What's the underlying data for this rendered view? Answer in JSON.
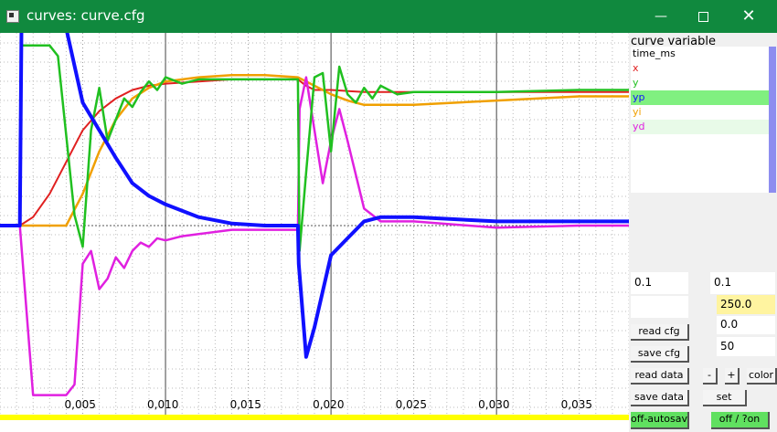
{
  "window": {
    "title": "curves: curve.cfg"
  },
  "panel": {
    "header": "curve variable",
    "variables": [
      {
        "label": "time_ms",
        "color": "#000000"
      },
      {
        "label": "x",
        "color": "#e02020"
      },
      {
        "label": "y",
        "color": "#20c020"
      },
      {
        "label": "yp",
        "color": "#1010ff"
      },
      {
        "label": "yi",
        "color": "#f0a000"
      },
      {
        "label": "yd",
        "color": "#e020e0"
      }
    ],
    "selected": "yp",
    "fields": {
      "left_top": "0.1",
      "right_top": "0.1",
      "left_empty": "",
      "right_yellow": "250.0",
      "right_3": "0.0",
      "right_4": "50"
    },
    "buttons": {
      "read_cfg": "read cfg",
      "save_cfg": "save cfg",
      "read_data": "read data",
      "save_data": "save data",
      "minus": "-",
      "plus": "+",
      "color": "color",
      "set": "set",
      "autosave": "off-autosave",
      "off_on": "off / ?on"
    }
  },
  "chart_data": {
    "type": "line",
    "xlabel": "",
    "ylabel": "",
    "xlim": [
      0.0,
      0.038
    ],
    "ylim": [
      -1.0,
      1.0
    ],
    "x_ticks": [
      "0,005",
      "0,010",
      "0,015",
      "0,020",
      "0,025",
      "0,030",
      "0,035"
    ],
    "grid": true,
    "series": [
      {
        "name": "x",
        "color": "#e02020",
        "x": [
          0.0,
          0.0012,
          0.002,
          0.003,
          0.004,
          0.005,
          0.006,
          0.007,
          0.008,
          0.009,
          0.01,
          0.012,
          0.014,
          0.016,
          0.018,
          0.0185,
          0.019,
          0.02,
          0.022,
          0.025,
          0.03,
          0.035,
          0.038
        ],
        "y": [
          0.0,
          0.0,
          0.04,
          0.15,
          0.3,
          0.45,
          0.54,
          0.6,
          0.64,
          0.66,
          0.67,
          0.68,
          0.69,
          0.69,
          0.69,
          0.66,
          0.64,
          0.64,
          0.63,
          0.63,
          0.63,
          0.63,
          0.63
        ]
      },
      {
        "name": "y",
        "color": "#20c020",
        "x": [
          0.0,
          0.0012,
          0.0013,
          0.003,
          0.0035,
          0.0045,
          0.005,
          0.0055,
          0.006,
          0.0065,
          0.007,
          0.0075,
          0.008,
          0.0085,
          0.009,
          0.0095,
          0.01,
          0.011,
          0.012,
          0.014,
          0.018,
          0.0181,
          0.0185,
          0.019,
          0.0195,
          0.02,
          0.0205,
          0.021,
          0.0215,
          0.022,
          0.0225,
          0.023,
          0.024,
          0.025,
          0.03,
          0.035,
          0.038
        ],
        "y": [
          0.0,
          0.0,
          0.85,
          0.85,
          0.8,
          0.05,
          -0.1,
          0.45,
          0.65,
          0.4,
          0.5,
          0.6,
          0.56,
          0.63,
          0.68,
          0.64,
          0.7,
          0.67,
          0.69,
          0.69,
          0.69,
          -0.12,
          0.25,
          0.7,
          0.72,
          0.35,
          0.75,
          0.62,
          0.58,
          0.65,
          0.6,
          0.66,
          0.62,
          0.63,
          0.63,
          0.64,
          0.64
        ]
      },
      {
        "name": "yp",
        "color": "#1010ff",
        "x": [
          0.0,
          0.0012,
          0.0013,
          0.003,
          0.004,
          0.005,
          0.006,
          0.007,
          0.008,
          0.009,
          0.01,
          0.012,
          0.014,
          0.016,
          0.018,
          0.01805,
          0.0185,
          0.019,
          0.02,
          0.021,
          0.022,
          0.023,
          0.024,
          0.025,
          0.03,
          0.035,
          0.038
        ],
        "y": [
          0.0,
          0.0,
          1.0,
          1.0,
          1.0,
          0.58,
          0.45,
          0.32,
          0.2,
          0.14,
          0.1,
          0.04,
          0.01,
          0.0,
          0.0,
          -0.18,
          -0.62,
          -0.48,
          -0.14,
          -0.06,
          0.02,
          0.04,
          0.04,
          0.04,
          0.02,
          0.02,
          0.02
        ]
      },
      {
        "name": "yi",
        "color": "#f0a000",
        "x": [
          0.0,
          0.003,
          0.004,
          0.005,
          0.006,
          0.007,
          0.008,
          0.009,
          0.01,
          0.012,
          0.014,
          0.016,
          0.018,
          0.019,
          0.02,
          0.021,
          0.022,
          0.025,
          0.03,
          0.035,
          0.038
        ],
        "y": [
          0.0,
          0.0,
          0.0,
          0.15,
          0.35,
          0.5,
          0.6,
          0.65,
          0.68,
          0.7,
          0.71,
          0.71,
          0.7,
          0.66,
          0.62,
          0.59,
          0.57,
          0.57,
          0.59,
          0.61,
          0.61
        ]
      },
      {
        "name": "yd",
        "color": "#e020e0",
        "x": [
          0.0,
          0.0012,
          0.002,
          0.0025,
          0.004,
          0.0045,
          0.005,
          0.0055,
          0.006,
          0.0065,
          0.007,
          0.0075,
          0.008,
          0.0085,
          0.009,
          0.0095,
          0.01,
          0.011,
          0.012,
          0.014,
          0.018,
          0.0181,
          0.0185,
          0.019,
          0.0195,
          0.02,
          0.0205,
          0.021,
          0.022,
          0.023,
          0.025,
          0.03,
          0.035,
          0.038
        ],
        "y": [
          0.0,
          0.0,
          -0.8,
          -0.8,
          -0.8,
          -0.75,
          -0.18,
          -0.12,
          -0.3,
          -0.25,
          -0.15,
          -0.2,
          -0.12,
          -0.08,
          -0.1,
          -0.06,
          -0.07,
          -0.05,
          -0.04,
          -0.02,
          -0.02,
          0.55,
          0.7,
          0.45,
          0.2,
          0.4,
          0.55,
          0.4,
          0.08,
          0.02,
          0.02,
          -0.01,
          0.0,
          0.0
        ]
      }
    ]
  }
}
